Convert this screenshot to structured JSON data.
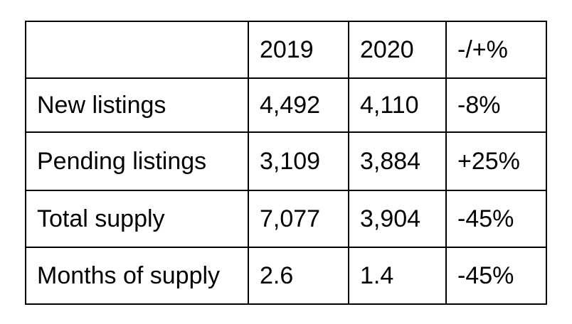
{
  "chart_data": {
    "type": "table",
    "columns": [
      "",
      "2019",
      "2020",
      "-/+%"
    ],
    "rows": [
      [
        "New listings",
        "4,492",
        "4,110",
        "-8%"
      ],
      [
        "Pending listings",
        "3,109",
        "3,884",
        "+25%"
      ],
      [
        "Total supply",
        "7,077",
        "3,904",
        "-45%"
      ],
      [
        "Months of supply",
        "2.6",
        "1.4",
        "-45%"
      ]
    ]
  }
}
